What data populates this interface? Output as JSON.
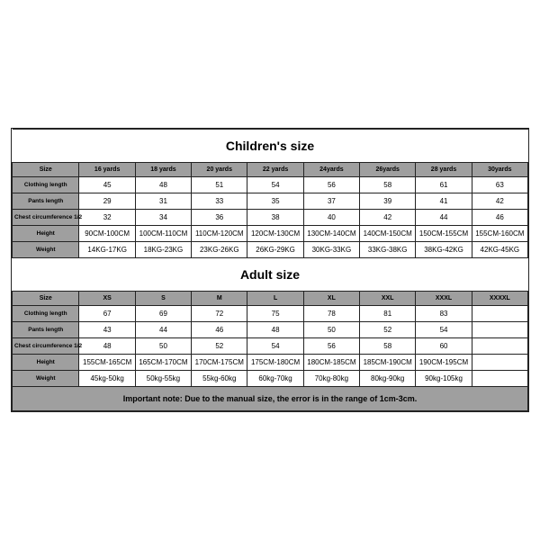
{
  "colors": {
    "border": "#232323",
    "header_bg": "#9f9f9f",
    "body_bg": "#ffffff",
    "text": "#000000"
  },
  "children": {
    "title": "Children's size",
    "label_header": "Size",
    "headers": [
      "16 yards",
      "18 yards",
      "20 yards",
      "22 yards",
      "24yards",
      "26yards",
      "28 yards",
      "30yards"
    ],
    "rows": [
      {
        "label": "Clothing length",
        "cells": [
          "45",
          "48",
          "51",
          "54",
          "56",
          "58",
          "61",
          "63"
        ]
      },
      {
        "label": "Pants length",
        "cells": [
          "29",
          "31",
          "33",
          "35",
          "37",
          "39",
          "41",
          "42"
        ]
      },
      {
        "label": "Chest circumference 1/2",
        "cells": [
          "32",
          "34",
          "36",
          "38",
          "40",
          "42",
          "44",
          "46"
        ]
      },
      {
        "label": "Height",
        "cells": [
          "90CM-100CM",
          "100CM-110CM",
          "110CM-120CM",
          "120CM-130CM",
          "130CM-140CM",
          "140CM-150CM",
          "150CM-155CM",
          "155CM-160CM"
        ]
      },
      {
        "label": "Weight",
        "cells": [
          "14KG-17KG",
          "18KG-23KG",
          "23KG-26KG",
          "26KG-29KG",
          "30KG-33KG",
          "33KG-38KG",
          "38KG-42KG",
          "42KG-45KG"
        ]
      }
    ]
  },
  "adult": {
    "title": "Adult size",
    "label_header": "Size",
    "headers": [
      "XS",
      "S",
      "M",
      "L",
      "XL",
      "XXL",
      "XXXL",
      "XXXXL"
    ],
    "rows": [
      {
        "label": "Clothing length",
        "cells": [
          "67",
          "69",
          "72",
          "75",
          "78",
          "81",
          "83",
          ""
        ]
      },
      {
        "label": "Pants length",
        "cells": [
          "43",
          "44",
          "46",
          "48",
          "50",
          "52",
          "54",
          ""
        ]
      },
      {
        "label": "Chest circumference 1/2",
        "cells": [
          "48",
          "50",
          "52",
          "54",
          "56",
          "58",
          "60",
          ""
        ]
      },
      {
        "label": "Height",
        "cells": [
          "155CM-165CM",
          "165CM-170CM",
          "170CM-175CM",
          "175CM-180CM",
          "180CM-185CM",
          "185CM-190CM",
          "190CM-195CM",
          ""
        ]
      },
      {
        "label": "Weight",
        "cells": [
          "45kg-50kg",
          "50kg-55kg",
          "55kg-60kg",
          "60kg-70kg",
          "70kg-80kg",
          "80kg-90kg",
          "90kg-105kg",
          ""
        ]
      }
    ]
  },
  "note": "Important note: Due to the manual size, the error is in the range of 1cm-3cm."
}
